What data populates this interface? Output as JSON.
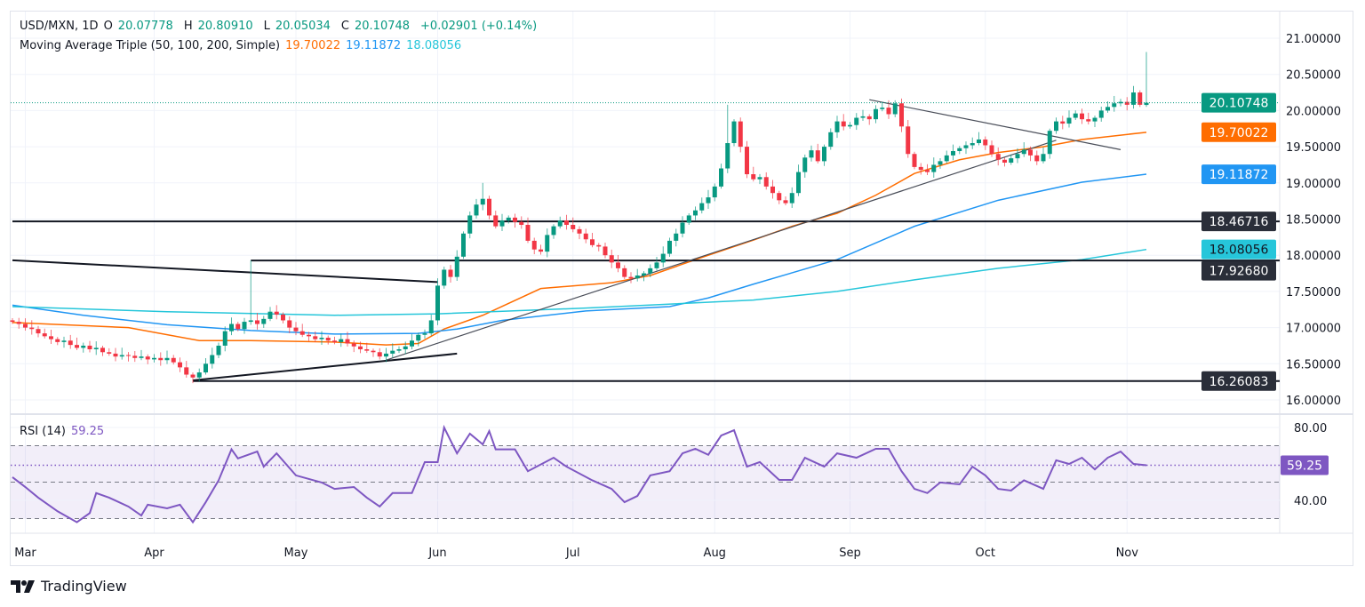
{
  "header": {
    "symbol": "USD/MXN, 1D",
    "open_label": "O",
    "open": "20.07778",
    "high_label": "H",
    "high": "20.80910",
    "low_label": "L",
    "low": "20.05034",
    "close_label": "C",
    "close": "20.10748",
    "change": "+0.02901 (+0.14%)"
  },
  "ma_legend": {
    "label": "Moving Average Triple (50, 100, 200, Simple)",
    "ma50": "19.70022",
    "ma100": "19.11872",
    "ma200": "18.08056"
  },
  "rsi_legend": {
    "label": "RSI (14)",
    "value": "59.25"
  },
  "branding": "TradingView",
  "colors": {
    "up": "#089981",
    "down": "#f23645",
    "ma50": "#ff6d00",
    "ma100": "#2196f3",
    "ma200": "#26c6da",
    "rsi": "#7e57c2",
    "drawing": "#131722"
  },
  "chart_data": {
    "type": "candlestick",
    "price_axis": {
      "range": [
        15.95,
        21.0
      ],
      "ticks": [
        "16.00000",
        "16.50000",
        "17.00000",
        "17.50000",
        "18.00000",
        "18.50000",
        "19.00000",
        "19.50000",
        "20.00000",
        "20.50000",
        "21.00000"
      ]
    },
    "x_axis": {
      "labels": [
        {
          "label": "Mar",
          "bar": 2
        },
        {
          "label": "Apr",
          "bar": 22
        },
        {
          "label": "May",
          "bar": 44
        },
        {
          "label": "Jun",
          "bar": 66
        },
        {
          "label": "Jul",
          "bar": 87
        },
        {
          "label": "Aug",
          "bar": 109
        },
        {
          "label": "Sep",
          "bar": 130
        },
        {
          "label": "Oct",
          "bar": 151
        },
        {
          "label": "Nov",
          "bar": 173
        }
      ]
    },
    "closes": [
      17.08,
      17.05,
      17.0,
      16.98,
      16.92,
      16.88,
      16.84,
      16.8,
      16.82,
      16.76,
      16.72,
      16.75,
      16.7,
      16.72,
      16.66,
      16.64,
      16.6,
      16.62,
      16.61,
      16.58,
      16.6,
      16.56,
      16.58,
      16.55,
      16.58,
      16.52,
      16.45,
      16.35,
      16.31,
      16.38,
      16.5,
      16.62,
      16.75,
      16.95,
      17.05,
      16.98,
      17.08,
      17.1,
      17.05,
      17.12,
      17.22,
      17.18,
      17.1,
      17.0,
      16.95,
      16.9,
      16.88,
      16.84,
      16.86,
      16.82,
      16.8,
      16.84,
      16.78,
      16.74,
      16.7,
      16.68,
      16.66,
      16.6,
      16.64,
      16.68,
      16.7,
      16.74,
      16.82,
      16.9,
      16.92,
      17.1,
      17.58,
      17.8,
      17.7,
      17.98,
      18.3,
      18.55,
      18.7,
      18.78,
      18.55,
      18.4,
      18.48,
      18.52,
      18.46,
      18.42,
      18.2,
      18.08,
      18.05,
      18.28,
      18.4,
      18.48,
      18.42,
      18.36,
      18.3,
      18.22,
      18.14,
      18.12,
      18.0,
      17.9,
      17.82,
      17.7,
      17.68,
      17.72,
      17.75,
      17.82,
      17.9,
      18.02,
      18.2,
      18.3,
      18.45,
      18.55,
      18.62,
      18.72,
      18.8,
      18.95,
      19.2,
      19.55,
      19.85,
      19.5,
      19.12,
      19.05,
      19.08,
      18.95,
      18.86,
      18.76,
      18.72,
      18.86,
      19.15,
      19.35,
      19.45,
      19.3,
      19.5,
      19.7,
      19.85,
      19.78,
      19.8,
      19.9,
      19.92,
      19.88,
      20.02,
      20.04,
      19.95,
      20.1,
      19.78,
      19.4,
      19.22,
      19.18,
      19.15,
      19.25,
      19.3,
      19.38,
      19.44,
      19.48,
      19.52,
      19.55,
      19.6,
      19.52,
      19.4,
      19.32,
      19.28,
      19.34,
      19.4,
      19.46,
      19.38,
      19.3,
      19.4,
      19.72,
      19.85,
      19.82,
      19.9,
      19.96,
      19.88,
      19.85,
      19.9,
      20.0,
      20.05,
      20.1,
      20.12,
      20.08,
      20.25,
      20.08,
      20.10748
    ],
    "first_open": 17.1,
    "last_bar": {
      "open": 20.07778,
      "high": 20.8091,
      "low": 20.05034,
      "close": 20.10748
    },
    "notable_highs": [
      {
        "bar": 37,
        "high": 17.9268
      },
      {
        "bar": 73,
        "high": 19.0
      },
      {
        "bar": 111,
        "high": 20.08
      }
    ],
    "moving_averages": [
      {
        "name": "MA 50",
        "color": "#ff6d00",
        "last": "19.70022",
        "points": [
          [
            0,
            17.07
          ],
          [
            18,
            17.0
          ],
          [
            29,
            16.82
          ],
          [
            37,
            16.82
          ],
          [
            50,
            16.8
          ],
          [
            58,
            16.76
          ],
          [
            63,
            16.78
          ],
          [
            67,
            16.98
          ],
          [
            73,
            17.17
          ],
          [
            82,
            17.54
          ],
          [
            93,
            17.62
          ],
          [
            99,
            17.72
          ],
          [
            107,
            17.97
          ],
          [
            115,
            18.21
          ],
          [
            121,
            18.4
          ],
          [
            128,
            18.58
          ],
          [
            134,
            18.83
          ],
          [
            140,
            19.13
          ],
          [
            147,
            19.32
          ],
          [
            153,
            19.42
          ],
          [
            160,
            19.5
          ],
          [
            166,
            19.6
          ],
          [
            176,
            19.7
          ]
        ]
      },
      {
        "name": "MA 100",
        "color": "#2196f3",
        "last": "19.11872",
        "points": [
          [
            0,
            17.31
          ],
          [
            11,
            17.17
          ],
          [
            24,
            17.04
          ],
          [
            37,
            16.96
          ],
          [
            50,
            16.91
          ],
          [
            63,
            16.92
          ],
          [
            69,
            16.98
          ],
          [
            76,
            17.1
          ],
          [
            89,
            17.23
          ],
          [
            102,
            17.29
          ],
          [
            108,
            17.41
          ],
          [
            115,
            17.6
          ],
          [
            128,
            17.94
          ],
          [
            140,
            18.4
          ],
          [
            153,
            18.76
          ],
          [
            166,
            19.01
          ],
          [
            176,
            19.12
          ]
        ]
      },
      {
        "name": "MA 200",
        "color": "#26c6da",
        "last": "18.08056",
        "points": [
          [
            0,
            17.29
          ],
          [
            24,
            17.22
          ],
          [
            50,
            17.17
          ],
          [
            66,
            17.19
          ],
          [
            89,
            17.27
          ],
          [
            115,
            17.38
          ],
          [
            128,
            17.5
          ],
          [
            140,
            17.66
          ],
          [
            153,
            17.82
          ],
          [
            166,
            17.94
          ],
          [
            176,
            18.08
          ]
        ]
      }
    ],
    "horizontal_levels": [
      {
        "price": 18.46716,
        "label": "18.46716",
        "from_bar": 0
      },
      {
        "price": 17.9268,
        "label": "17.92680",
        "from_bar": 37
      },
      {
        "price": 16.26083,
        "label": "16.26083",
        "from_bar": 28
      }
    ],
    "trend_lines": [
      {
        "from": [
          0,
          17.93
        ],
        "to": [
          66,
          17.63
        ],
        "weight": "thick"
      },
      {
        "from": [
          28,
          16.27
        ],
        "to": [
          69,
          16.64
        ],
        "weight": "thick"
      },
      {
        "from": [
          58,
          16.55
        ],
        "to": [
          162,
          19.59
        ],
        "weight": "thin"
      },
      {
        "from": [
          133,
          20.15
        ],
        "to": [
          172,
          19.46
        ],
        "weight": "thin"
      }
    ],
    "last_price_label": "20.10748",
    "rsi": {
      "axis_ticks": [
        "80.00",
        "40.00"
      ],
      "levels": {
        "upper": 70,
        "middle": 50,
        "lower": 30
      },
      "value_label": "59.25",
      "points": [
        [
          0,
          52.7
        ],
        [
          2,
          47.3
        ],
        [
          4,
          41.5
        ],
        [
          7,
          34
        ],
        [
          10,
          28
        ],
        [
          12,
          33
        ],
        [
          13,
          44
        ],
        [
          15,
          41.5
        ],
        [
          18,
          36.6
        ],
        [
          20,
          31.7
        ],
        [
          21,
          37.6
        ],
        [
          24,
          35.6
        ],
        [
          26,
          37.6
        ],
        [
          28,
          28
        ],
        [
          30,
          39
        ],
        [
          32,
          51
        ],
        [
          34,
          68
        ],
        [
          35,
          63
        ],
        [
          38,
          66.8
        ],
        [
          39,
          58.5
        ],
        [
          41,
          65.8
        ],
        [
          44,
          53.7
        ],
        [
          48,
          49.8
        ],
        [
          50,
          46.3
        ],
        [
          53,
          47.3
        ],
        [
          55,
          41.5
        ],
        [
          57,
          36.6
        ],
        [
          59,
          44
        ],
        [
          62,
          44
        ],
        [
          64,
          61
        ],
        [
          66,
          61
        ],
        [
          67,
          80
        ],
        [
          69,
          65.8
        ],
        [
          71,
          76.6
        ],
        [
          73,
          70.7
        ],
        [
          74,
          78
        ],
        [
          75,
          68
        ],
        [
          78,
          68
        ],
        [
          80,
          56
        ],
        [
          84,
          63.4
        ],
        [
          86,
          58.5
        ],
        [
          90,
          51
        ],
        [
          93,
          46.3
        ],
        [
          95,
          39
        ],
        [
          97,
          42.4
        ],
        [
          99,
          53.7
        ],
        [
          102,
          56
        ],
        [
          104,
          65.8
        ],
        [
          106,
          68.3
        ],
        [
          108,
          65
        ],
        [
          110,
          75.6
        ],
        [
          112,
          78.5
        ],
        [
          114,
          58.5
        ],
        [
          116,
          61
        ],
        [
          119,
          51.2
        ],
        [
          121,
          51.2
        ],
        [
          123,
          63.4
        ],
        [
          126,
          58.5
        ],
        [
          128,
          65.8
        ],
        [
          131,
          63.4
        ],
        [
          134,
          68.3
        ],
        [
          136,
          68.3
        ],
        [
          138,
          56
        ],
        [
          140,
          46.3
        ],
        [
          142,
          44
        ],
        [
          144,
          49.8
        ],
        [
          147,
          48.8
        ],
        [
          149,
          58.5
        ],
        [
          151,
          53.7
        ],
        [
          153,
          46.3
        ],
        [
          155,
          45.4
        ],
        [
          157,
          51
        ],
        [
          160,
          46.3
        ],
        [
          162,
          62
        ],
        [
          164,
          60
        ],
        [
          166,
          63.4
        ],
        [
          168,
          57
        ],
        [
          170,
          63.4
        ],
        [
          172,
          66.8
        ],
        [
          174,
          60
        ],
        [
          176,
          59.25
        ]
      ]
    }
  }
}
